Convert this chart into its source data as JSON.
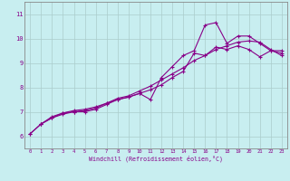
{
  "xlabel": "Windchill (Refroidissement éolien,°C)",
  "bg_color": "#c8eef0",
  "line_color": "#880088",
  "grid_color": "#aacccc",
  "spine_color": "#888888",
  "xlim": [
    -0.5,
    23.5
  ],
  "ylim": [
    5.5,
    11.5
  ],
  "yticks": [
    6,
    7,
    8,
    9,
    10,
    11
  ],
  "xticks": [
    0,
    1,
    2,
    3,
    4,
    5,
    6,
    7,
    8,
    9,
    10,
    11,
    12,
    13,
    14,
    15,
    16,
    17,
    18,
    19,
    20,
    21,
    22,
    23
  ],
  "line1_x": [
    0,
    1,
    2,
    3,
    4,
    5,
    6,
    7,
    8,
    9,
    10,
    11,
    12,
    13,
    14,
    15,
    16,
    17,
    18,
    19,
    20,
    21,
    22,
    23
  ],
  "line1_y": [
    6.1,
    6.5,
    6.8,
    6.95,
    7.0,
    7.05,
    7.15,
    7.35,
    7.55,
    7.65,
    7.85,
    8.05,
    8.3,
    8.55,
    8.8,
    9.1,
    9.3,
    9.55,
    9.7,
    9.85,
    9.9,
    9.85,
    9.55,
    9.3
  ],
  "line2_x": [
    1,
    2,
    3,
    4,
    5,
    6,
    7,
    8,
    9,
    10,
    11,
    12,
    13,
    14,
    15,
    16,
    17,
    18,
    19,
    20,
    21,
    22,
    23
  ],
  "line2_y": [
    6.5,
    6.75,
    6.95,
    7.05,
    7.1,
    7.2,
    7.35,
    7.5,
    7.6,
    7.75,
    7.5,
    8.4,
    8.85,
    9.3,
    9.5,
    10.55,
    10.65,
    9.8,
    10.1,
    10.1,
    9.8,
    9.5,
    9.4
  ],
  "line3_x": [
    0,
    1,
    2,
    3,
    4,
    5,
    6,
    7,
    8,
    9,
    10,
    11,
    12,
    13,
    14,
    15,
    16,
    17,
    18,
    19,
    20,
    21,
    22,
    23
  ],
  "line3_y": [
    6.1,
    6.5,
    6.75,
    6.9,
    7.0,
    7.0,
    7.1,
    7.3,
    7.5,
    7.6,
    7.75,
    7.9,
    8.1,
    8.4,
    8.65,
    9.4,
    9.3,
    9.65,
    9.55,
    9.7,
    9.55,
    9.25,
    9.5,
    9.5
  ]
}
